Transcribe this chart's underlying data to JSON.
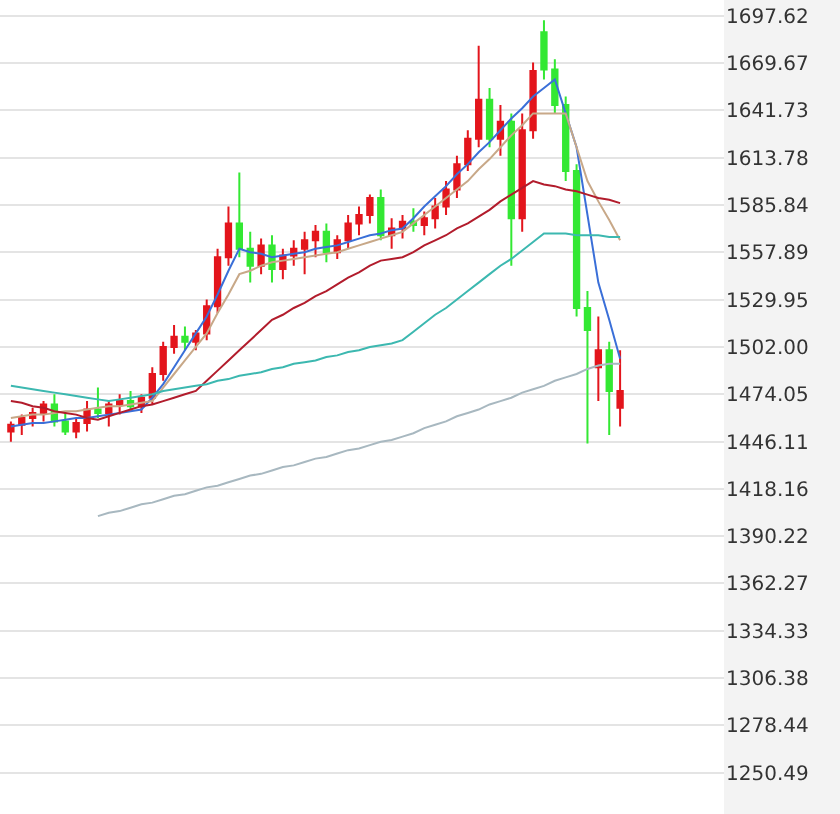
{
  "chart_data": {
    "type": "candlestick",
    "categories": [
      null,
      null,
      null,
      null,
      null,
      null,
      null,
      null,
      null,
      null,
      null,
      null,
      null,
      null,
      null,
      null,
      null,
      null,
      null,
      null,
      null,
      null,
      null,
      null,
      null,
      null,
      null,
      null,
      null,
      null,
      null,
      null,
      null,
      null,
      null,
      null,
      null,
      null,
      null,
      null,
      null,
      null,
      null,
      null,
      null,
      null,
      null,
      null,
      null,
      null,
      null,
      null,
      null,
      null,
      null,
      null,
      null
    ],
    "ohlc": [
      [
        1452,
        1458,
        1446,
        1456
      ],
      [
        1456,
        1462,
        1450,
        1460
      ],
      [
        1460,
        1466,
        1455,
        1463
      ],
      [
        1463,
        1470,
        1458,
        1468
      ],
      [
        1468,
        1474,
        1455,
        1458
      ],
      [
        1458,
        1464,
        1450,
        1452
      ],
      [
        1452,
        1460,
        1448,
        1457
      ],
      [
        1457,
        1470,
        1452,
        1465
      ],
      [
        1465,
        1478,
        1460,
        1463
      ],
      [
        1463,
        1470,
        1455,
        1468
      ],
      [
        1468,
        1474,
        1462,
        1470
      ],
      [
        1470,
        1476,
        1465,
        1467
      ],
      [
        1467,
        1474,
        1463,
        1472
      ],
      [
        1472,
        1490,
        1468,
        1486
      ],
      [
        1486,
        1505,
        1482,
        1502
      ],
      [
        1502,
        1515,
        1498,
        1508
      ],
      [
        1508,
        1514,
        1500,
        1505
      ],
      [
        1505,
        1512,
        1500,
        1510
      ],
      [
        1510,
        1530,
        1506,
        1526
      ],
      [
        1526,
        1560,
        1522,
        1555
      ],
      [
        1555,
        1585,
        1550,
        1575
      ],
      [
        1575,
        1605,
        1555,
        1560
      ],
      [
        1560,
        1570,
        1540,
        1550
      ],
      [
        1550,
        1566,
        1545,
        1562
      ],
      [
        1562,
        1568,
        1540,
        1548
      ],
      [
        1548,
        1560,
        1542,
        1556
      ],
      [
        1556,
        1565,
        1550,
        1560
      ],
      [
        1560,
        1570,
        1545,
        1565
      ],
      [
        1565,
        1574,
        1555,
        1570
      ],
      [
        1570,
        1575,
        1552,
        1558
      ],
      [
        1558,
        1568,
        1554,
        1565
      ],
      [
        1565,
        1580,
        1560,
        1575
      ],
      [
        1575,
        1585,
        1568,
        1580
      ],
      [
        1580,
        1592,
        1575,
        1590
      ],
      [
        1590,
        1595,
        1565,
        1568
      ],
      [
        1568,
        1578,
        1560,
        1572
      ],
      [
        1572,
        1580,
        1566,
        1576
      ],
      [
        1576,
        1584,
        1570,
        1574
      ],
      [
        1574,
        1582,
        1568,
        1578
      ],
      [
        1578,
        1590,
        1572,
        1585
      ],
      [
        1585,
        1600,
        1580,
        1595
      ],
      [
        1595,
        1615,
        1590,
        1610
      ],
      [
        1610,
        1630,
        1606,
        1625
      ],
      [
        1625,
        1680,
        1620,
        1648
      ],
      [
        1648,
        1655,
        1620,
        1625
      ],
      [
        1625,
        1645,
        1615,
        1635
      ],
      [
        1635,
        1640,
        1550,
        1578
      ],
      [
        1578,
        1640,
        1570,
        1630
      ],
      [
        1630,
        1670,
        1625,
        1665
      ],
      [
        1688,
        1695,
        1660,
        1666
      ],
      [
        1666,
        1672,
        1640,
        1645
      ],
      [
        1645,
        1650,
        1600,
        1606
      ],
      [
        1606,
        1610,
        1520,
        1525
      ],
      [
        1525,
        1535,
        1445,
        1512
      ],
      [
        1490,
        1520,
        1470,
        1500
      ],
      [
        1500,
        1505,
        1450,
        1476
      ],
      [
        1466,
        1500,
        1455,
        1476
      ]
    ],
    "series": [
      {
        "type": "line",
        "color": "#3a6fd8",
        "values": [
          1455,
          1456,
          1457,
          1457,
          1458,
          1459,
          1460,
          1460,
          1461,
          1462,
          1463,
          1464,
          1465,
          1472,
          1480,
          1490,
          1500,
          1510,
          1520,
          1533,
          1547,
          1560,
          1558,
          1557,
          1555,
          1556,
          1557,
          1558,
          1560,
          1561,
          1562,
          1564,
          1566,
          1568,
          1569,
          1571,
          1572,
          1578,
          1585,
          1591,
          1597,
          1604,
          1610,
          1617,
          1623,
          1630,
          1637,
          1643,
          1650,
          1655,
          1660,
          1640,
          1620,
          1580,
          1540,
          1518,
          1495
        ]
      },
      {
        "type": "line",
        "color": "#c8a888",
        "values": [
          1460,
          1461,
          1462,
          1462,
          1463,
          1464,
          1464,
          1465,
          1466,
          1467,
          1467,
          1468,
          1469,
          1470,
          1478,
          1486,
          1494,
          1502,
          1510,
          1522,
          1533,
          1545,
          1547,
          1550,
          1552,
          1553,
          1554,
          1555,
          1556,
          1557,
          1558,
          1560,
          1562,
          1564,
          1566,
          1568,
          1570,
          1575,
          1580,
          1585,
          1590,
          1595,
          1600,
          1607,
          1613,
          1620,
          1627,
          1633,
          1640,
          1640,
          1640,
          1640,
          1620,
          1600,
          1588,
          1577,
          1565
        ]
      },
      {
        "type": "line",
        "color": "#b21c2c",
        "values": [
          1470,
          1469,
          1467,
          1466,
          1464,
          1463,
          1462,
          1460,
          1459,
          1461,
          1463,
          1465,
          1467,
          1468,
          1470,
          1472,
          1474,
          1476,
          1482,
          1488,
          1494,
          1500,
          1506,
          1512,
          1518,
          1521,
          1525,
          1528,
          1532,
          1535,
          1539,
          1543,
          1546,
          1550,
          1553,
          1554,
          1555,
          1558,
          1562,
          1565,
          1568,
          1572,
          1575,
          1579,
          1583,
          1588,
          1592,
          1596,
          1600,
          1598,
          1597,
          1595,
          1594,
          1592,
          1590,
          1589,
          1587
        ]
      },
      {
        "type": "line",
        "color": "#3cb8b0",
        "values": [
          1479,
          1478,
          1477,
          1476,
          1475,
          1474,
          1473,
          1472,
          1471,
          1470,
          1471,
          1472,
          1473,
          1474,
          1476,
          1477,
          1478,
          1479,
          1480,
          1482,
          1483,
          1485,
          1486,
          1487,
          1489,
          1490,
          1492,
          1493,
          1494,
          1496,
          1497,
          1499,
          1500,
          1502,
          1503,
          1504,
          1506,
          1511,
          1516,
          1521,
          1525,
          1530,
          1535,
          1540,
          1545,
          1550,
          1554,
          1559,
          1564,
          1569,
          1569,
          1569,
          1568,
          1568,
          1568,
          1567,
          1567
        ]
      },
      {
        "type": "line",
        "color": "#a8b8c0",
        "values": [
          null,
          null,
          null,
          null,
          null,
          null,
          null,
          null,
          1402,
          1404,
          1405,
          1407,
          1409,
          1410,
          1412,
          1414,
          1415,
          1417,
          1419,
          1420,
          1422,
          1424,
          1426,
          1427,
          1429,
          1431,
          1432,
          1434,
          1436,
          1437,
          1439,
          1441,
          1442,
          1444,
          1446,
          1447,
          1449,
          1451,
          1454,
          1456,
          1458,
          1461,
          1463,
          1465,
          1468,
          1470,
          1472,
          1475,
          1477,
          1479,
          1482,
          1484,
          1486,
          1489,
          1491,
          1492,
          1492
        ]
      }
    ],
    "ylim": [
      1226,
      1707
    ],
    "yticks": [
      1250.49,
      1278.44,
      1306.38,
      1334.33,
      1362.27,
      1390.22,
      1418.16,
      1446.11,
      1474.05,
      {
        "value": 1502,
        "label": "1502.00"
      },
      1529.95,
      1557.89,
      1585.84,
      1613.78,
      1641.73,
      1669.67,
      1697.62
    ],
    "grid": "y",
    "tick_labels": "y"
  }
}
